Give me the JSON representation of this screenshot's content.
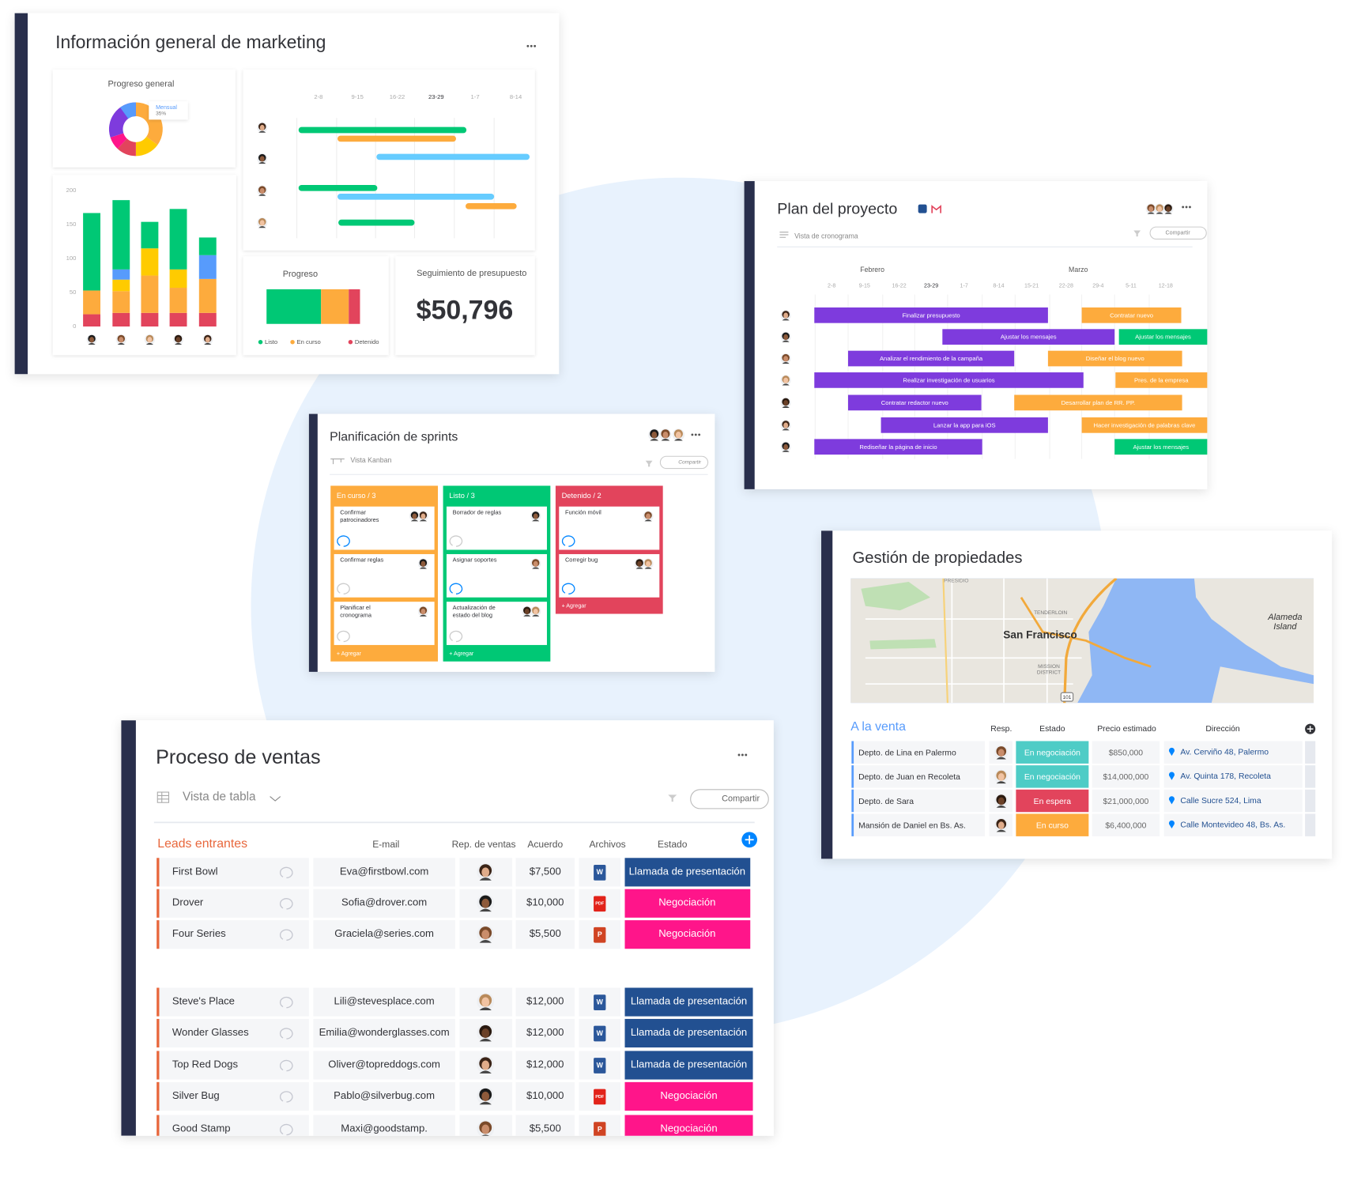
{
  "marketing": {
    "title": "Información general de marketing",
    "donut": {
      "title": "Progreso general",
      "tooltip_label": "Mensual",
      "tooltip_value": "35%"
    },
    "gantt_weeks": [
      "2-8",
      "9-15",
      "16-22",
      "23-29",
      "1-7",
      "8-14"
    ],
    "bar_chart": {
      "type": "bar",
      "stacked": true,
      "ylim": [
        0,
        200
      ],
      "yticks": [
        0,
        50,
        100,
        150,
        200
      ],
      "series": [
        {
          "color": "#e2445c",
          "values": [
            18,
            20,
            20,
            20,
            20
          ]
        },
        {
          "color": "#fdab3d",
          "values": [
            35,
            32,
            55,
            37,
            50
          ]
        },
        {
          "color": "#ffcb00",
          "values": [
            0,
            17,
            40,
            27,
            0
          ]
        },
        {
          "color": "#579bfc",
          "values": [
            0,
            15,
            0,
            0,
            35
          ]
        },
        {
          "color": "#00c875",
          "values": [
            114,
            102,
            39,
            89,
            26
          ]
        }
      ]
    },
    "progress": {
      "title": "Progreso",
      "legend": [
        {
          "label": "Listo",
          "color": "#00c875"
        },
        {
          "label": "En curso",
          "color": "#fdab3d"
        },
        {
          "label": "Detenido",
          "color": "#e2445c"
        }
      ]
    },
    "budget": {
      "title": "Seguimiento de presupuesto",
      "value": "$50,796"
    }
  },
  "project": {
    "title": "Plan del proyecto",
    "view": "Vista de cronograma",
    "share": "Compartir",
    "months": [
      "Febrero",
      "Marzo"
    ],
    "weeks": [
      "2-8",
      "9-15",
      "16-22",
      "23-29",
      "1-7",
      "8-14",
      "15-21",
      "22-28",
      "29-4",
      "5-11",
      "12-18"
    ],
    "tasks": [
      {
        "label": "Finalizar presupuesto",
        "color": "#7e3bdd"
      },
      {
        "label": "Contratar nuevo",
        "color": "#fdab3d"
      },
      {
        "label": "Ajustar los mensajes",
        "color": "#7e3bdd"
      },
      {
        "label": "Ajustar los mensajes",
        "color": "#00c875"
      },
      {
        "label": "Analizar el rendimiento de la campaña",
        "color": "#7e3bdd"
      },
      {
        "label": "Diseñar el blog nuevo",
        "color": "#fdab3d"
      },
      {
        "label": "Realizar investigación de usuarios",
        "color": "#7e3bdd"
      },
      {
        "label": "Pres. de la empresa",
        "color": "#fdab3d"
      },
      {
        "label": "Contratar redactor nuevo",
        "color": "#7e3bdd"
      },
      {
        "label": "Desarrollar plan de RR. PP.",
        "color": "#fdab3d"
      },
      {
        "label": "Lanzar la app para iOS",
        "color": "#7e3bdd"
      },
      {
        "label": "Hacer investigación de palabras clave",
        "color": "#fdab3d"
      },
      {
        "label": "Rediseñar la página de inicio",
        "color": "#7e3bdd"
      },
      {
        "label": "Ajustar los mensajes",
        "color": "#00c875"
      }
    ]
  },
  "sprints": {
    "title": "Planificación de sprints",
    "view": "Vista Kanban",
    "share": "Compartir",
    "add": "+ Agregar",
    "columns": [
      {
        "title": "En curso / 3",
        "color": "#fdab3d",
        "cards": [
          [
            "Confirmar",
            "patrocinadores"
          ],
          [
            "Confirmar reglas"
          ],
          [
            "Planificar el",
            "cronograma"
          ]
        ]
      },
      {
        "title": "Listo / 3",
        "color": "#00c875",
        "cards": [
          [
            "Borrador de reglas"
          ],
          [
            "Asignar soportes"
          ],
          [
            "Actualización de",
            "estado del blog"
          ]
        ]
      },
      {
        "title": "Detenido / 2",
        "color": "#e2445c",
        "cards": [
          [
            "Función móvil"
          ],
          [
            "Corregir bug"
          ]
        ]
      }
    ]
  },
  "sales": {
    "title": "Proceso de ventas",
    "view": "Vista de tabla",
    "share": "Compartir",
    "group": "Leads entrantes",
    "headers": [
      "E-mail",
      "Rep. de ventas",
      "Acuerdo",
      "Archivos",
      "Estado"
    ],
    "rows": [
      {
        "name": "First Bowl",
        "email": "Eva@firstbowl.com",
        "deal": "$7,500",
        "file": "W",
        "status": "Llamada de presentación",
        "status_color": "#225091"
      },
      {
        "name": "Drover",
        "email": "Sofia@drover.com",
        "deal": "$10,000",
        "file": "PDF",
        "status": "Negociación",
        "status_color": "#ff158a"
      },
      {
        "name": "Four Series",
        "email": "Graciela@series.com",
        "deal": "$5,500",
        "file": "P",
        "status": "Negociación",
        "status_color": "#ff158a"
      },
      {
        "name": "Steve's Place",
        "email": "Lili@stevesplace.com",
        "deal": "$12,000",
        "file": "W",
        "status": "Llamada de presentación",
        "status_color": "#225091"
      },
      {
        "name": "Wonder Glasses",
        "email": "Emilia@wonderglasses.com",
        "deal": "$12,000",
        "file": "W",
        "status": "Llamada de presentación",
        "status_color": "#225091"
      },
      {
        "name": "Top Red Dogs",
        "email": "Oliver@topreddogs.com",
        "deal": "$12,000",
        "file": "W",
        "status": "Llamada de presentación",
        "status_color": "#225091"
      },
      {
        "name": "Silver Bug",
        "email": "Pablo@silverbug.com",
        "deal": "$10,000",
        "file": "PDF",
        "status": "Negociación",
        "status_color": "#ff158a"
      },
      {
        "name": "Good Stamp",
        "email": "Maxi@goodstamp.",
        "deal": "$5,500",
        "file": "P",
        "status": "Negociación",
        "status_color": "#ff158a"
      }
    ]
  },
  "properties": {
    "title": "Gestión de propiedades",
    "map_labels": {
      "city": "San Francisco",
      "island": [
        "Alameda",
        "Island"
      ],
      "tenderloin": "TENDERLOIN",
      "mission": [
        "MISSION",
        "DISTRICT"
      ],
      "highway": "101",
      "presidio": "PRESIDIO"
    },
    "group": "A la venta",
    "headers": [
      "Resp.",
      "Estado",
      "Precio estimado",
      "Dirección"
    ],
    "rows": [
      {
        "name": "Depto. de Lina en Palermo",
        "status": "En negociación",
        "status_color": "#4eccc6",
        "price": "$850,000",
        "address": "Av. Cerviño 48, Palermo"
      },
      {
        "name": "Depto. de Juan en Recoleta",
        "status": "En negociación",
        "status_color": "#4eccc6",
        "price": "$14,000,000",
        "address": "Av. Quinta 178, Recoleta"
      },
      {
        "name": "Depto. de Sara",
        "status": "En espera",
        "status_color": "#e2445c",
        "price": "$21,000,000",
        "address": "Calle Sucre 524, Lima"
      },
      {
        "name": "Mansión de Daniel en Bs. As.",
        "status": "En curso",
        "status_color": "#fdab3d",
        "price": "$6,400,000",
        "address": "Calle Montevideo 48, Bs. As."
      }
    ]
  }
}
